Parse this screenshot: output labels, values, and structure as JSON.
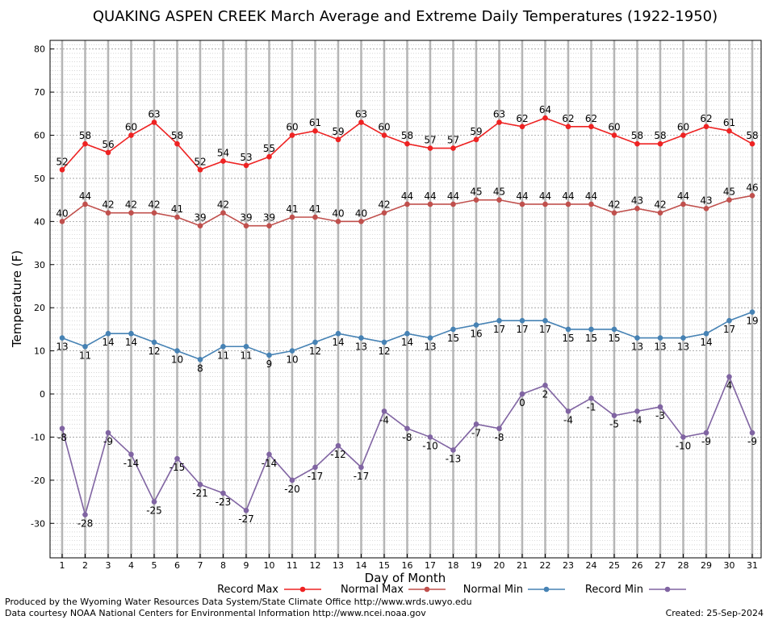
{
  "chart_data": {
    "type": "line",
    "title": "QUAKING ASPEN CREEK March Average and Extreme Daily Temperatures (1922-1950)",
    "xlabel": "Day of Month",
    "ylabel": "Temperature (F)",
    "ylim": [
      -38,
      82
    ],
    "yticks": [
      -30,
      -20,
      -10,
      0,
      10,
      20,
      30,
      40,
      50,
      60,
      70,
      80
    ],
    "grid": true,
    "legend_position": "bottom",
    "x": [
      1,
      2,
      3,
      4,
      5,
      6,
      7,
      8,
      9,
      10,
      11,
      12,
      13,
      14,
      15,
      16,
      17,
      18,
      19,
      20,
      21,
      22,
      23,
      24,
      25,
      26,
      27,
      28,
      29,
      30,
      31
    ],
    "series": [
      {
        "name": "Record Max",
        "color": "#ee2222",
        "values": [
          52,
          58,
          56,
          60,
          63,
          58,
          52,
          54,
          53,
          55,
          60,
          61,
          59,
          63,
          60,
          58,
          57,
          57,
          59,
          63,
          62,
          64,
          62,
          62,
          60,
          58,
          58,
          60,
          62,
          61,
          58
        ]
      },
      {
        "name": "Normal Max",
        "color": "#c0504d",
        "values": [
          40,
          44,
          42,
          42,
          42,
          41,
          39,
          42,
          39,
          39,
          41,
          41,
          40,
          40,
          42,
          44,
          44,
          44,
          45,
          45,
          44,
          44,
          44,
          44,
          42,
          43,
          42,
          44,
          43,
          45,
          46
        ]
      },
      {
        "name": "Normal Min",
        "color": "#4682b4",
        "values": [
          13,
          11,
          14,
          14,
          12,
          10,
          8,
          11,
          11,
          9,
          10,
          12,
          14,
          13,
          12,
          14,
          13,
          15,
          16,
          17,
          17,
          17,
          15,
          15,
          15,
          13,
          13,
          13,
          14,
          17,
          19
        ]
      },
      {
        "name": "Record Min",
        "color": "#8064a2",
        "values": [
          -8,
          -28,
          -9,
          -14,
          -25,
          -15,
          -21,
          -23,
          -27,
          -14,
          -20,
          -17,
          -12,
          -17,
          -4,
          -8,
          -10,
          -13,
          -7,
          -8,
          0,
          2,
          -4,
          -1,
          -5,
          -4,
          -3,
          -10,
          -9,
          4,
          -9
        ]
      }
    ]
  },
  "footer": {
    "produced_by": "Produced by the Wyoming Water Resources Data System/State Climate Office http://www.wrds.uwyo.edu",
    "data_courtesy": "Data courtesy NOAA National Centers for Environmental Information http://www.ncei.noaa.gov",
    "created": "Created:  25-Sep-2024"
  }
}
